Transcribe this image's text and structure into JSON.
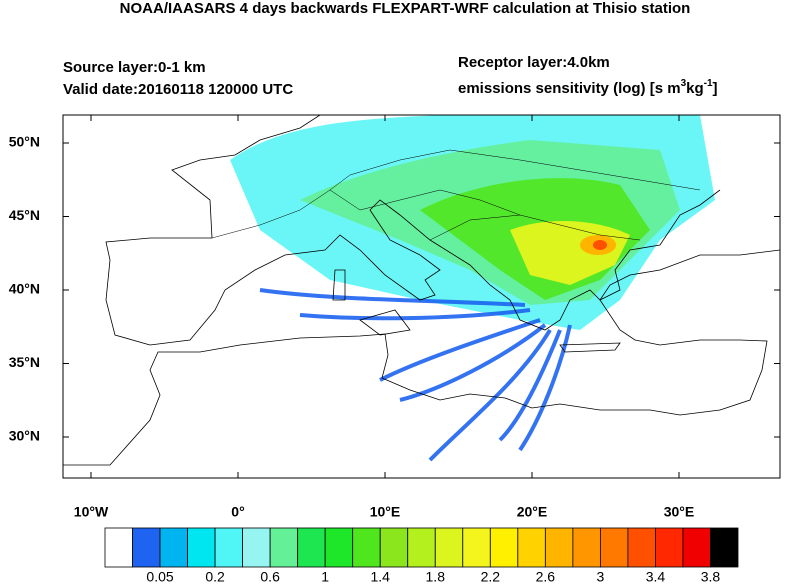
{
  "map": {
    "title": "NOAA/IAASARS 4 days backwards FLEXPART-WRF calculation at Thisio station",
    "source_layer": "Source layer:0-1 km",
    "valid_date": "Valid date:20160118 120000 UTC",
    "receptor_layer": "Receptor layer:4.0km",
    "units": [
      "emissions sensitivity (log) [s m",
      "3",
      "kg",
      "-1",
      "]"
    ],
    "lat_ticks": [
      {
        "value": 50,
        "label": "50°N"
      },
      {
        "value": 45,
        "label": "45°N"
      },
      {
        "value": 40,
        "label": "40°N"
      },
      {
        "value": 35,
        "label": "35°N"
      },
      {
        "value": 30,
        "label": "30°N"
      }
    ],
    "lon_ticks": [
      {
        "value": -10,
        "label": "10°W"
      },
      {
        "value": 0,
        "label": "0°"
      },
      {
        "value": 10,
        "label": "10°E"
      },
      {
        "value": 20,
        "label": "20°E"
      },
      {
        "value": 30,
        "label": "30°E"
      }
    ],
    "colorbar": {
      "colors": [
        "#ffffff",
        "#1e64f0",
        "#00b4f0",
        "#00e6f0",
        "#50f5f5",
        "#96f5f0",
        "#64f096",
        "#1ee650",
        "#1ee628",
        "#50e61e",
        "#8ce61e",
        "#b4f01e",
        "#dcf51e",
        "#f5f51e",
        "#fff000",
        "#ffd200",
        "#ffb400",
        "#ff9600",
        "#ff7800",
        "#ff5000",
        "#ff2800",
        "#f00000",
        "#000000"
      ],
      "labels": [
        0.05,
        0.2,
        0.6,
        1,
        1.4,
        1.8,
        2.2,
        2.6,
        3,
        3.4,
        3.8
      ]
    }
  }
}
